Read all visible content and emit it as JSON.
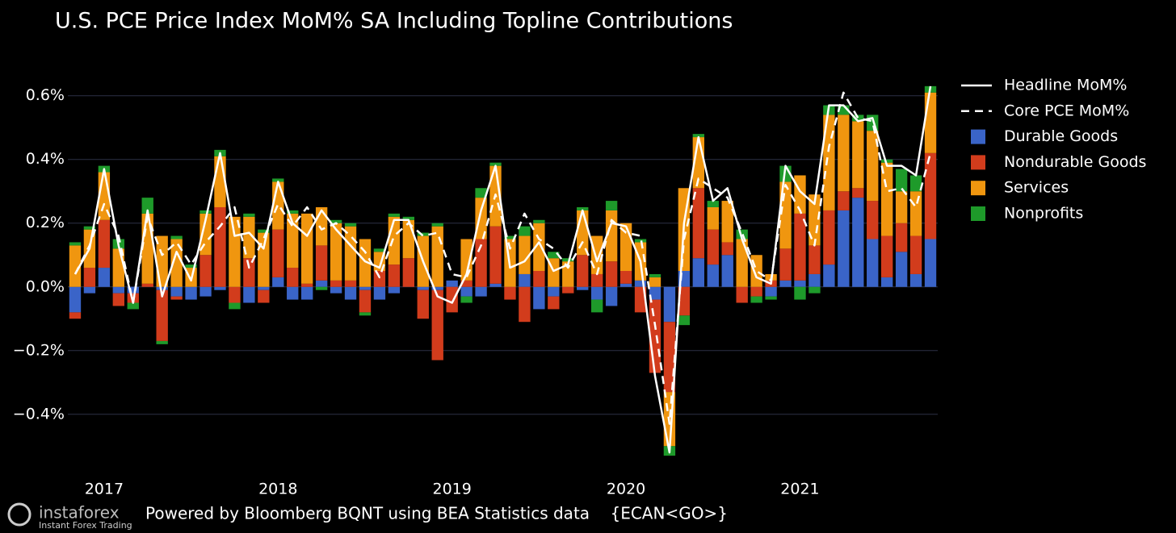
{
  "chart_data": {
    "type": "bar",
    "title": "U.S. PCE Price Index MoM% SA Including Topline Contributions",
    "footer": "Powered by Bloomberg BQNT using BEA Statistics data    {ECAN<GO>}",
    "watermark": {
      "brand": "instaforex",
      "tagline": "Instant Forex Trading"
    },
    "categories": [
      null,
      null,
      "2017",
      null,
      null,
      null,
      null,
      null,
      null,
      null,
      null,
      null,
      null,
      null,
      "2018",
      null,
      null,
      null,
      null,
      null,
      null,
      null,
      null,
      null,
      null,
      null,
      "2019",
      null,
      null,
      null,
      null,
      null,
      null,
      null,
      null,
      null,
      null,
      null,
      "2020",
      null,
      null,
      null,
      null,
      null,
      null,
      null,
      null,
      null,
      null,
      null,
      "2021",
      null,
      null,
      null,
      null,
      null,
      null,
      null,
      null,
      null
    ],
    "ylim": [
      -0.56,
      0.66
    ],
    "yticks": [
      {
        "value": -0.4,
        "label": "−0.4%"
      },
      {
        "value": -0.2,
        "label": "−0.2%"
      },
      {
        "value": 0,
        "label": "0.0%"
      },
      {
        "value": 0.2,
        "label": "0.2%"
      },
      {
        "value": 0.4,
        "label": "0.4%"
      },
      {
        "value": 0.6,
        "label": "0.6%"
      }
    ],
    "grid": true,
    "legend": "right",
    "series": [
      {
        "name": "Headline MoM%",
        "type": "line",
        "color": "#ffffff",
        "dash": false,
        "values": [
          0.04,
          0.12,
          0.37,
          0.13,
          -0.05,
          0.24,
          -0.03,
          0.11,
          0.02,
          0.21,
          0.42,
          0.16,
          0.17,
          0.12,
          0.33,
          0.2,
          0.16,
          0.24,
          0.18,
          0.13,
          0.08,
          0.06,
          0.21,
          0.21,
          0.08,
          -0.03,
          -0.05,
          0.04,
          0.24,
          0.38,
          0.06,
          0.08,
          0.14,
          0.05,
          0.07,
          0.24,
          0.08,
          0.2,
          0.19,
          0.08,
          -0.28,
          -0.52,
          0.2,
          0.47,
          0.27,
          0.31,
          0.15,
          0.03,
          0.01,
          0.38,
          0.3,
          0.26,
          0.57,
          0.57,
          0.52,
          0.53,
          0.38,
          0.38,
          0.35,
          0.63
        ]
      },
      {
        "name": "Core PCE MoM%",
        "type": "line",
        "color": "#ffffff",
        "dash": true,
        "values": [
          0.04,
          0.13,
          0.26,
          0.16,
          -0.05,
          0.22,
          0.1,
          0.14,
          0.07,
          0.14,
          0.19,
          0.25,
          0.06,
          0.15,
          0.26,
          0.19,
          0.25,
          0.18,
          0.2,
          0.16,
          0.11,
          0.03,
          0.16,
          0.2,
          0.16,
          0.17,
          0.04,
          0.03,
          0.13,
          0.29,
          0.12,
          0.23,
          0.15,
          0.12,
          0.06,
          0.14,
          0.04,
          0.21,
          0.17,
          0.16,
          -0.12,
          -0.43,
          0.15,
          0.34,
          0.31,
          0.28,
          0.17,
          0.05,
          0.02,
          0.32,
          0.24,
          0.13,
          0.44,
          0.61,
          0.53,
          0.52,
          0.3,
          0.31,
          0.25,
          0.42
        ]
      },
      {
        "name": "Durable Goods",
        "type": "bar",
        "color": "#3a64c8",
        "values": [
          -0.08,
          -0.02,
          0.06,
          -0.02,
          -0.02,
          0,
          -0.01,
          -0.03,
          -0.04,
          -0.03,
          -0.01,
          0,
          -0.05,
          -0.01,
          0.03,
          -0.04,
          -0.04,
          0.02,
          -0.02,
          -0.04,
          -0.01,
          -0.04,
          -0.02,
          0,
          -0.01,
          -0.01,
          0.02,
          -0.03,
          -0.03,
          0.01,
          0,
          0.04,
          -0.07,
          -0.03,
          0,
          -0.01,
          -0.04,
          -0.06,
          0.01,
          0.02,
          -0.04,
          -0.11,
          0.05,
          0.09,
          0.07,
          0.1,
          0,
          0,
          -0.03,
          0.02,
          0.02,
          0.04,
          0.07,
          0.24,
          0.28,
          0.15,
          0.03,
          0.11,
          0.04,
          0.15
        ]
      },
      {
        "name": "Nondurable Goods",
        "type": "bar",
        "color": "#d23c1c",
        "values": [
          -0.02,
          0.06,
          0.15,
          -0.04,
          -0.03,
          0.01,
          -0.16,
          -0.01,
          0,
          0.1,
          0.25,
          -0.05,
          0.09,
          -0.04,
          0.15,
          0.06,
          0.01,
          0.11,
          0.02,
          0.02,
          -0.07,
          0.05,
          0.07,
          0.09,
          -0.09,
          -0.22,
          -0.08,
          0.02,
          0.15,
          0.18,
          -0.04,
          -0.11,
          0.05,
          -0.04,
          -0.02,
          0.1,
          0.04,
          0.08,
          0.04,
          -0.08,
          -0.23,
          -0.22,
          -0.09,
          0.22,
          0.11,
          0.04,
          -0.05,
          -0.03,
          0.02,
          0.1,
          0.21,
          0.09,
          0.17,
          0.06,
          0.03,
          0.12,
          0.13,
          0.09,
          0.12,
          0.27
        ]
      },
      {
        "name": "Services",
        "type": "bar",
        "color": "#f0960f",
        "values": [
          0.13,
          0.12,
          0.15,
          0.12,
          0,
          0.22,
          0.16,
          0.15,
          0.06,
          0.13,
          0.16,
          0.22,
          0.13,
          0.17,
          0.15,
          0.17,
          0.22,
          0.12,
          0.18,
          0.17,
          0.15,
          0.06,
          0.15,
          0.12,
          0.16,
          0.19,
          0,
          0.13,
          0.13,
          0.19,
          0.15,
          0.12,
          0.15,
          0.09,
          0.08,
          0.14,
          0.12,
          0.16,
          0.15,
          0.12,
          0.03,
          -0.17,
          0.26,
          0.16,
          0.07,
          0.13,
          0.15,
          0.1,
          0.02,
          0.21,
          0.12,
          0.16,
          0.3,
          0.24,
          0.21,
          0.22,
          0.23,
          0.1,
          0.14,
          0.19
        ]
      },
      {
        "name": "Nonprofits",
        "type": "bar",
        "color": "#1e9a2a",
        "values": [
          0.01,
          0.01,
          0.02,
          0.03,
          -0.02,
          0.05,
          -0.01,
          0.01,
          0.01,
          0.01,
          0.02,
          -0.02,
          0.01,
          0.01,
          0.01,
          0.01,
          0,
          -0.01,
          0.01,
          0.01,
          -0.01,
          0.01,
          0.01,
          0.01,
          0.01,
          0.01,
          0,
          -0.02,
          0.03,
          0.01,
          0.01,
          0.03,
          0.01,
          0.02,
          0.01,
          0.01,
          -0.04,
          0.03,
          0,
          0.01,
          0.01,
          -0.03,
          -0.03,
          0.01,
          0.02,
          0,
          0.03,
          -0.02,
          -0.01,
          0.05,
          -0.04,
          -0.02,
          0.03,
          0.03,
          0.02,
          0.05,
          0.01,
          0.07,
          0.05,
          0.02
        ]
      }
    ]
  }
}
